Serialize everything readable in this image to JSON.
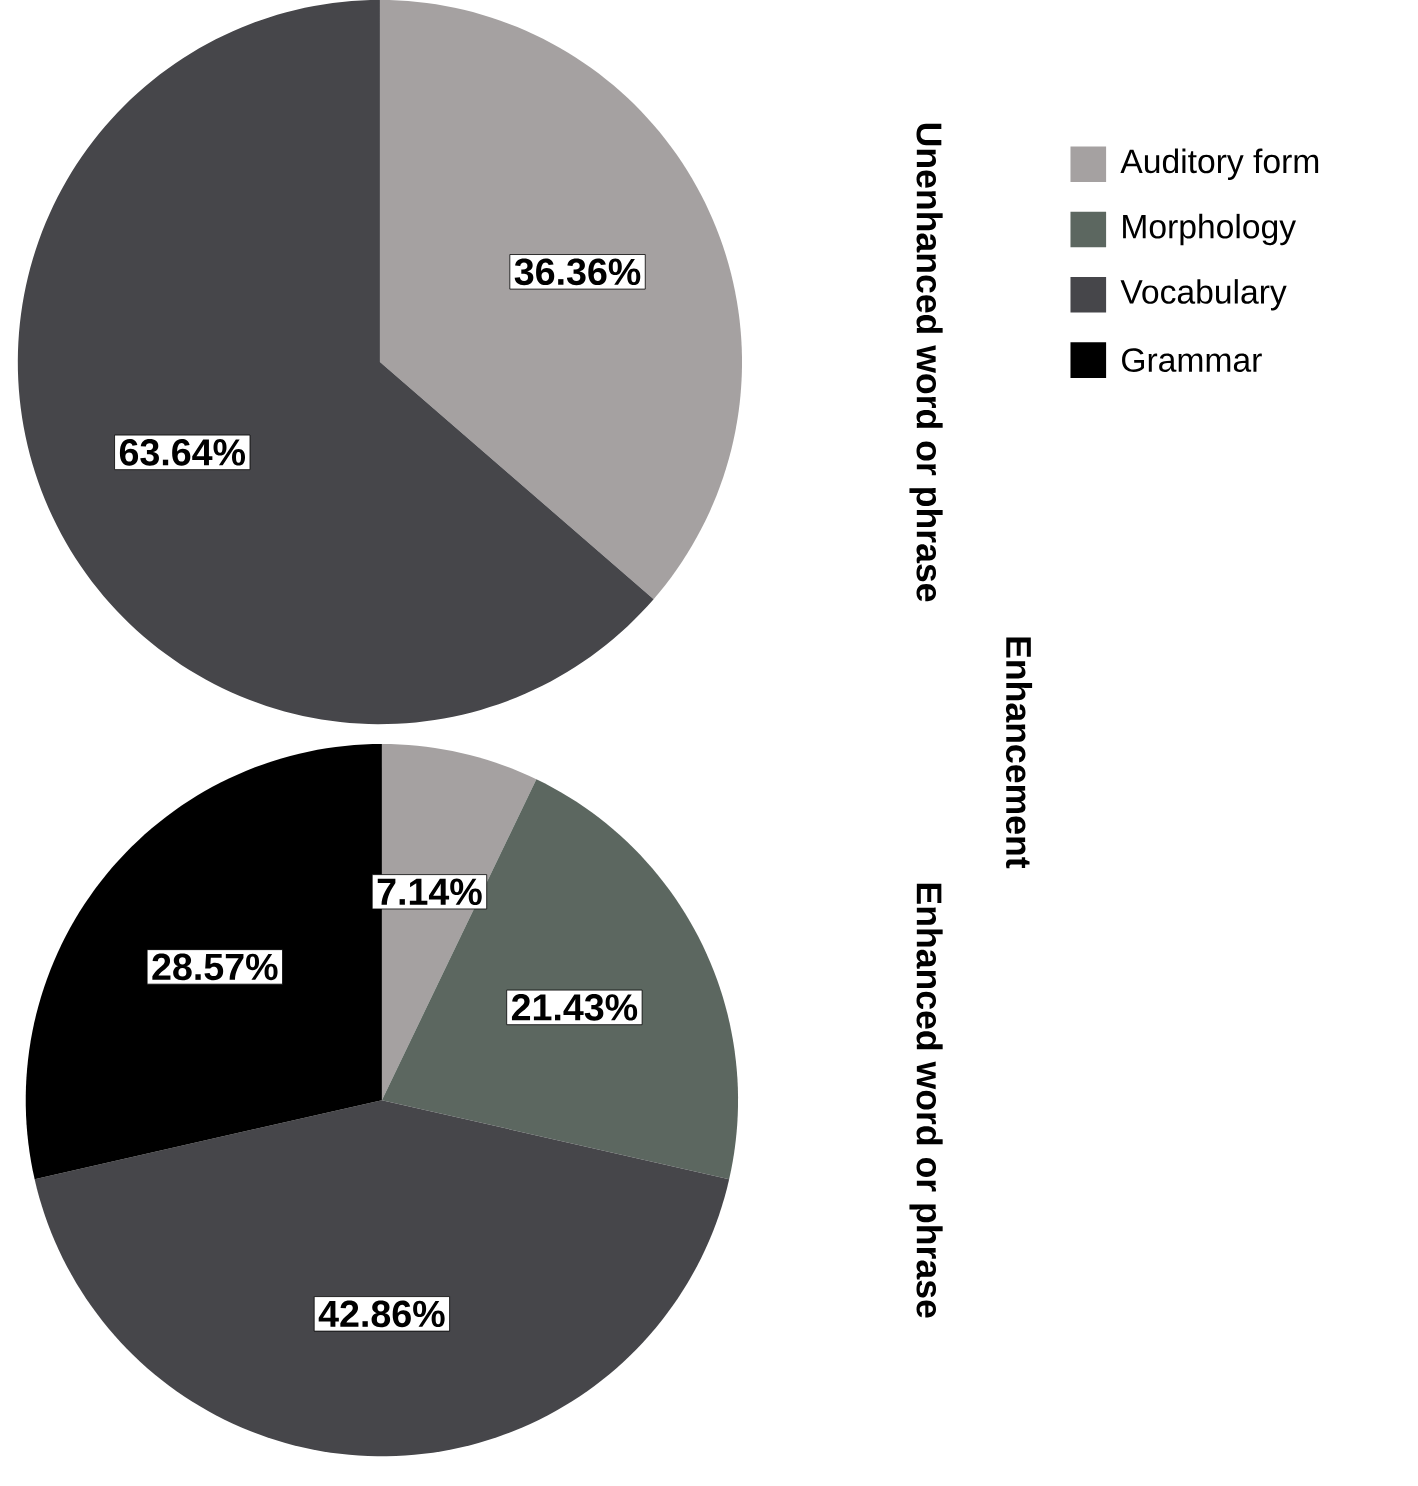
{
  "chart_data": [
    {
      "type": "pie",
      "title": "Unenhanced word or phrase",
      "categories": [
        "Auditory form",
        "Morphology",
        "Vocabulary",
        "Grammar"
      ],
      "values": [
        36.36,
        null,
        63.64,
        null
      ],
      "value_labels": [
        "36.36%",
        null,
        "63.64%",
        null
      ],
      "colors": [
        "#a5a1a1",
        "#5c6760",
        "#46464a",
        "#000000"
      ],
      "legend": "right",
      "annotations": [
        "Enhancement"
      ]
    },
    {
      "type": "pie",
      "title": "Enhanced word or phrase",
      "categories": [
        null,
        null,
        null,
        null
      ],
      "values": [
        7.14,
        21.43,
        42.86,
        28.57
      ],
      "value_labels": [
        "7.14%",
        "21.43%",
        "42.86%",
        "28.57%"
      ],
      "colors": [
        "#a5a1a1",
        "#5c6760",
        "#46464a",
        "#000000"
      ]
    }
  ]
}
